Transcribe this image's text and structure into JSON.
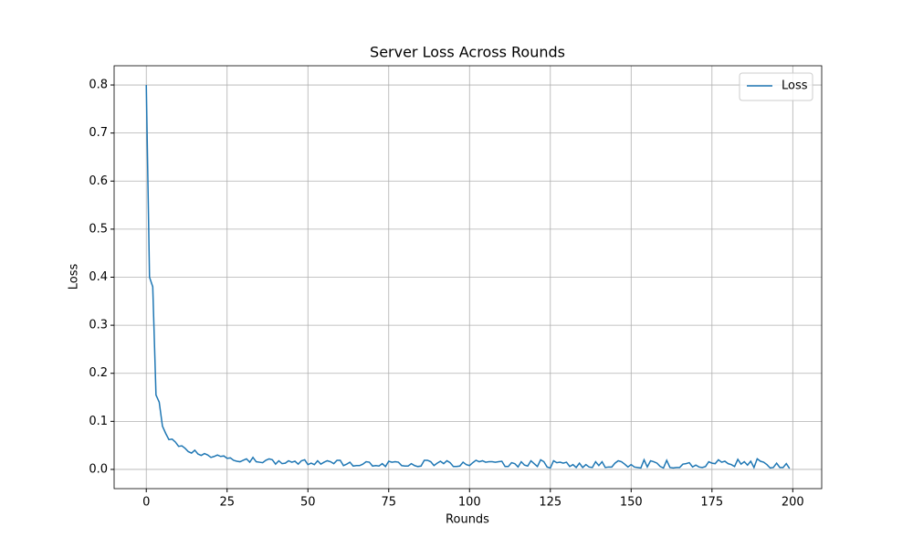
{
  "chart_data": {
    "type": "line",
    "title": "Server Loss Across Rounds",
    "xlabel": "Rounds",
    "ylabel": "Loss",
    "x": [
      0,
      1,
      2,
      3,
      4,
      5,
      6,
      7,
      8,
      9,
      10,
      11,
      12,
      13,
      14,
      15,
      16,
      17,
      18,
      19,
      20,
      21,
      22,
      23,
      24,
      25,
      26,
      27,
      28,
      29,
      30,
      31,
      32,
      33,
      34,
      35,
      36,
      37,
      38,
      39,
      40,
      41,
      42,
      43,
      44,
      45,
      46,
      47,
      48,
      49,
      50,
      51,
      52,
      53,
      54,
      55,
      56,
      57,
      58,
      59,
      60,
      61,
      62,
      63,
      64,
      65,
      66,
      67,
      68,
      69,
      70,
      71,
      72,
      73,
      74,
      75,
      76,
      77,
      78,
      79,
      80,
      81,
      82,
      83,
      84,
      85,
      86,
      87,
      88,
      89,
      90,
      91,
      92,
      93,
      94,
      95,
      96,
      97,
      98,
      99,
      100,
      101,
      102,
      103,
      104,
      105,
      106,
      107,
      108,
      109,
      110,
      111,
      112,
      113,
      114,
      115,
      116,
      117,
      118,
      119,
      120,
      121,
      122,
      123,
      124,
      125,
      126,
      127,
      128,
      129,
      130,
      131,
      132,
      133,
      134,
      135,
      136,
      137,
      138,
      139,
      140,
      141,
      142,
      143,
      144,
      145,
      146,
      147,
      148,
      149,
      150,
      151,
      152,
      153,
      154,
      155,
      156,
      157,
      158,
      159,
      160,
      161,
      162,
      163,
      164,
      165,
      166,
      167,
      168,
      169,
      170,
      171,
      172,
      173,
      174,
      175,
      176,
      177,
      178,
      179,
      180,
      181,
      182,
      183,
      184,
      185,
      186,
      187,
      188,
      189,
      190,
      191,
      192,
      193,
      194,
      195,
      196,
      197,
      198,
      199
    ],
    "series": [
      {
        "name": "Loss",
        "color": "#1f77b4",
        "values": [
          0.8,
          0.4,
          0.38,
          0.155,
          0.14,
          0.09,
          0.075,
          0.062,
          0.063,
          0.057,
          0.048,
          0.049,
          0.044,
          0.037,
          0.034,
          0.04,
          0.032,
          0.029,
          0.033,
          0.03,
          0.025,
          0.027,
          0.03,
          0.027,
          0.028,
          0.023,
          0.024,
          0.019,
          0.017,
          0.016,
          0.019,
          0.022,
          0.015,
          0.025,
          0.016,
          0.015,
          0.014,
          0.019,
          0.022,
          0.02,
          0.011,
          0.018,
          0.012,
          0.013,
          0.018,
          0.015,
          0.017,
          0.011,
          0.018,
          0.02,
          0.01,
          0.013,
          0.01,
          0.018,
          0.011,
          0.015,
          0.018,
          0.016,
          0.012,
          0.019,
          0.019,
          0.008,
          0.011,
          0.015,
          0.007,
          0.008,
          0.008,
          0.011,
          0.016,
          0.015,
          0.007,
          0.008,
          0.007,
          0.012,
          0.006,
          0.017,
          0.015,
          0.016,
          0.015,
          0.008,
          0.007,
          0.007,
          0.012,
          0.008,
          0.006,
          0.007,
          0.019,
          0.019,
          0.016,
          0.008,
          0.013,
          0.017,
          0.012,
          0.018,
          0.014,
          0.006,
          0.006,
          0.007,
          0.015,
          0.01,
          0.008,
          0.014,
          0.019,
          0.016,
          0.018,
          0.015,
          0.016,
          0.016,
          0.015,
          0.016,
          0.017,
          0.006,
          0.006,
          0.014,
          0.012,
          0.005,
          0.016,
          0.009,
          0.007,
          0.018,
          0.012,
          0.006,
          0.02,
          0.016,
          0.005,
          0.003,
          0.018,
          0.014,
          0.015,
          0.013,
          0.015,
          0.006,
          0.01,
          0.004,
          0.013,
          0.004,
          0.01,
          0.005,
          0.004,
          0.016,
          0.008,
          0.016,
          0.004,
          0.005,
          0.005,
          0.013,
          0.018,
          0.016,
          0.011,
          0.005,
          0.01,
          0.005,
          0.004,
          0.003,
          0.02,
          0.005,
          0.018,
          0.016,
          0.013,
          0.006,
          0.003,
          0.019,
          0.004,
          0.003,
          0.004,
          0.004,
          0.011,
          0.012,
          0.014,
          0.005,
          0.009,
          0.005,
          0.004,
          0.006,
          0.016,
          0.013,
          0.012,
          0.02,
          0.015,
          0.017,
          0.012,
          0.01,
          0.006,
          0.021,
          0.011,
          0.016,
          0.009,
          0.017,
          0.004,
          0.022,
          0.017,
          0.015,
          0.01,
          0.003,
          0.004,
          0.013,
          0.004,
          0.004,
          0.012,
          0.002
        ]
      }
    ],
    "xlim": [
      -9.95,
      208.95
    ],
    "ylim": [
      -0.04,
      0.84
    ],
    "xticks": [
      0,
      25,
      50,
      75,
      100,
      125,
      150,
      175,
      200
    ],
    "yticks": [
      {
        "value": 0,
        "label": "0.0"
      },
      0.1,
      0.2,
      0.3,
      0.4,
      0.5,
      0.6,
      0.7,
      0.8
    ],
    "grid": true,
    "legend": "upper right"
  }
}
